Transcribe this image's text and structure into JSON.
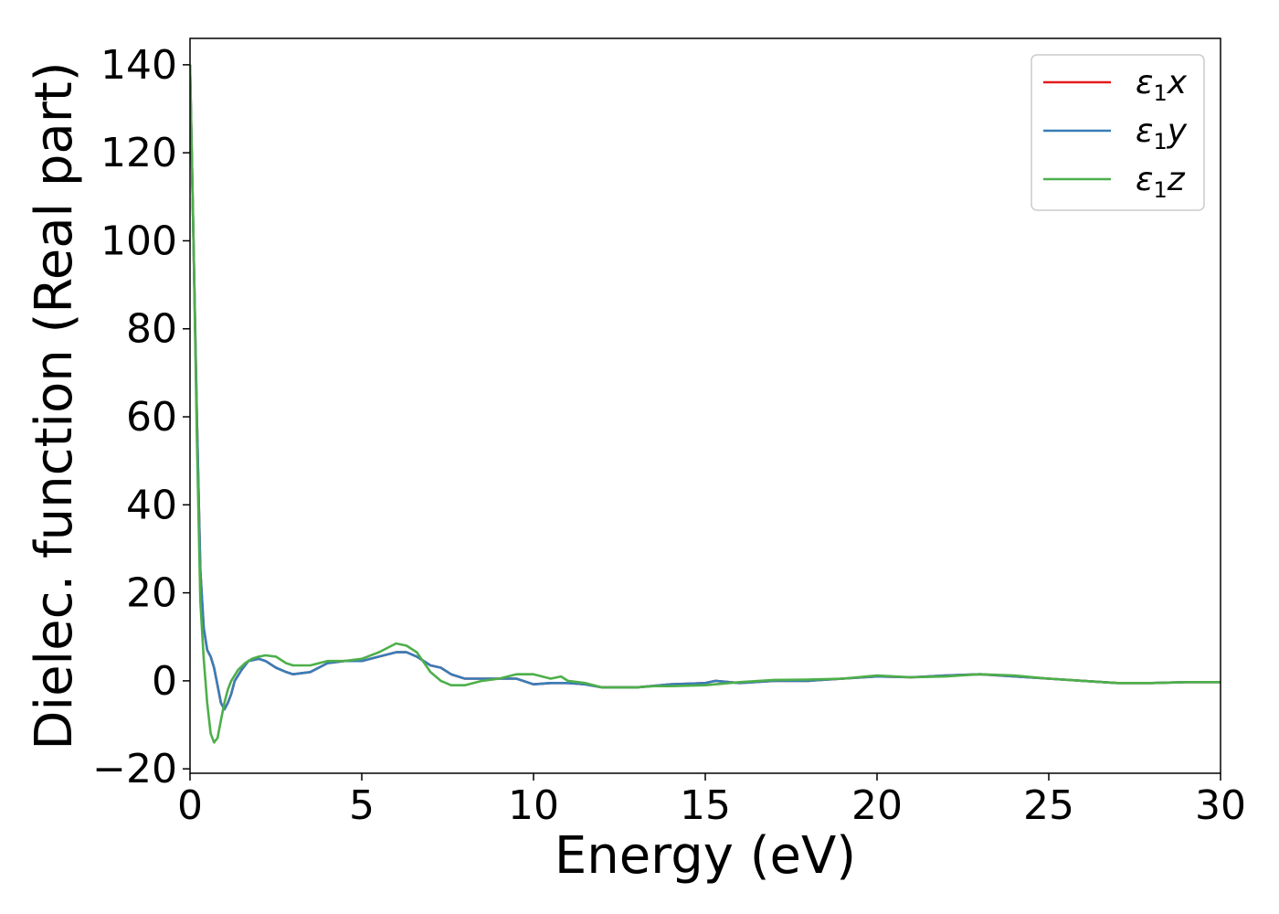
{
  "chart_data": {
    "type": "line",
    "title": "",
    "xlabel": "Energy (eV)",
    "ylabel": "Dielec. function (Real part)",
    "xlim": [
      0,
      30
    ],
    "ylim": [
      -21,
      146
    ],
    "xticks": [
      0,
      5,
      10,
      15,
      20,
      25,
      30
    ],
    "yticks": [
      -20,
      0,
      20,
      40,
      60,
      80,
      100,
      120,
      140
    ],
    "xtick_labels": [
      "0",
      "5",
      "10",
      "15",
      "20",
      "25",
      "30"
    ],
    "ytick_labels": [
      "−20",
      "0",
      "20",
      "40",
      "60",
      "80",
      "100",
      "120",
      "140"
    ],
    "grid": false,
    "legend_position": "top-right",
    "series": [
      {
        "name": "ε1x",
        "legend": {
          "main": "ε",
          "sub": "1",
          "tail": "x"
        },
        "color": "#e41a1c",
        "x": [
          0,
          0.1,
          0.2,
          0.3,
          0.4,
          0.5,
          0.6,
          0.7,
          0.8,
          0.9,
          1.0,
          1.1,
          1.2,
          1.3,
          1.5,
          1.7,
          2.0,
          2.2,
          2.5,
          2.8,
          3.0,
          3.5,
          4.0,
          4.5,
          5.0,
          5.5,
          6.0,
          6.3,
          6.6,
          7.0,
          7.3,
          7.6,
          8.0,
          8.5,
          9.0,
          9.5,
          10.0,
          10.5,
          11.0,
          11.5,
          12.0,
          13.0,
          14.0,
          15.0,
          15.3,
          16.0,
          17.0,
          18.0,
          19.0,
          20.0,
          21.0,
          22.0,
          23.0,
          24.0,
          25.0,
          26.0,
          27.0,
          28.0,
          29.0,
          30.0
        ],
        "values": [
          140,
          100,
          60,
          25,
          12,
          7,
          5.5,
          3,
          -1,
          -5,
          -6.5,
          -5,
          -3,
          0,
          2.5,
          4.5,
          5,
          4.5,
          3,
          2,
          1.5,
          2,
          4,
          4.5,
          4.5,
          5.5,
          6.5,
          6.5,
          5.5,
          3.5,
          3,
          1.5,
          0.5,
          0.5,
          0.5,
          0.5,
          -0.8,
          -0.5,
          -0.5,
          -0.8,
          -1.5,
          -1.5,
          -0.8,
          -0.5,
          0,
          -0.5,
          0,
          0,
          0.5,
          1,
          0.8,
          1.2,
          1.5,
          1,
          0.5,
          0,
          -0.5,
          -0.5,
          -0.3,
          -0.3
        ]
      },
      {
        "name": "ε1y",
        "legend": {
          "main": "ε",
          "sub": "1",
          "tail": "y"
        },
        "color": "#377eb8",
        "x": [
          0,
          0.1,
          0.2,
          0.3,
          0.4,
          0.5,
          0.6,
          0.7,
          0.8,
          0.9,
          1.0,
          1.1,
          1.2,
          1.3,
          1.5,
          1.7,
          2.0,
          2.2,
          2.5,
          2.8,
          3.0,
          3.5,
          4.0,
          4.5,
          5.0,
          5.5,
          6.0,
          6.3,
          6.6,
          7.0,
          7.3,
          7.6,
          8.0,
          8.5,
          9.0,
          9.5,
          10.0,
          10.5,
          11.0,
          11.5,
          12.0,
          13.0,
          14.0,
          15.0,
          15.3,
          16.0,
          17.0,
          18.0,
          19.0,
          20.0,
          21.0,
          22.0,
          23.0,
          24.0,
          25.0,
          26.0,
          27.0,
          28.0,
          29.0,
          30.0
        ],
        "values": [
          140,
          100,
          60,
          25,
          12,
          7,
          5.5,
          3,
          -1,
          -5,
          -6.5,
          -5,
          -3,
          0,
          2.5,
          4.5,
          5,
          4.5,
          3,
          2,
          1.5,
          2,
          4,
          4.5,
          4.5,
          5.5,
          6.5,
          6.5,
          5.5,
          3.5,
          3,
          1.5,
          0.5,
          0.5,
          0.5,
          0.5,
          -0.8,
          -0.5,
          -0.5,
          -0.8,
          -1.5,
          -1.5,
          -0.8,
          -0.5,
          0,
          -0.5,
          0,
          0,
          0.5,
          1,
          0.8,
          1.2,
          1.5,
          1,
          0.5,
          0,
          -0.5,
          -0.5,
          -0.3,
          -0.3
        ]
      },
      {
        "name": "ε1z",
        "legend": {
          "main": "ε",
          "sub": "1",
          "tail": "z"
        },
        "color": "#4daf4a",
        "x": [
          0,
          0.1,
          0.2,
          0.3,
          0.4,
          0.5,
          0.6,
          0.7,
          0.8,
          0.9,
          1.0,
          1.1,
          1.2,
          1.4,
          1.6,
          1.8,
          2.0,
          2.2,
          2.5,
          2.8,
          3.0,
          3.5,
          4.0,
          4.5,
          5.0,
          5.5,
          6.0,
          6.3,
          6.6,
          7.0,
          7.3,
          7.6,
          8.0,
          8.5,
          9.0,
          9.5,
          10.0,
          10.5,
          10.8,
          11.0,
          11.5,
          12.0,
          13.0,
          13.5,
          14.0,
          15.0,
          16.0,
          17.0,
          18.0,
          19.0,
          20.0,
          21.0,
          22.0,
          23.0,
          24.0,
          25.0,
          26.0,
          27.0,
          28.0,
          29.0,
          30.0
        ],
        "values": [
          140,
          100,
          55,
          18,
          5,
          -5,
          -12,
          -14,
          -13,
          -9,
          -5,
          -2,
          0,
          2.5,
          4,
          5,
          5.5,
          5.8,
          5.5,
          4,
          3.5,
          3.5,
          4.5,
          4.5,
          5,
          6.5,
          8.5,
          8,
          6.5,
          2,
          0,
          -1,
          -1,
          0,
          0.5,
          1.5,
          1.5,
          0.5,
          1,
          0,
          -0.5,
          -1.5,
          -1.5,
          -1.2,
          -1.2,
          -1,
          -0.3,
          0.2,
          0.3,
          0.5,
          1.2,
          0.8,
          1,
          1.5,
          1.2,
          0.5,
          0,
          -0.5,
          -0.5,
          -0.3,
          -0.3
        ]
      }
    ]
  }
}
